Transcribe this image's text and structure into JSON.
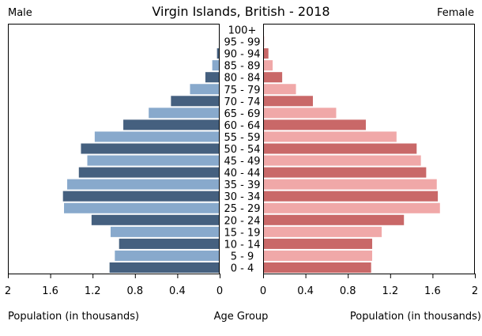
{
  "chart_data": {
    "type": "bar",
    "title": "Virgin Islands, British - 2018",
    "left_header": "Male",
    "right_header": "Female",
    "xlabel_left": "Population (in thousands)",
    "xlabel_center": "Age Group",
    "xlabel_right": "Population (in thousands)",
    "xlim": [
      0,
      2
    ],
    "x_ticks": [
      "2",
      "1.6",
      "1.2",
      "0.8",
      "0.4",
      "0"
    ],
    "x_ticks_right": [
      "0",
      "0.4",
      "0.8",
      "1.2",
      "1.6",
      "2"
    ],
    "categories": [
      "100+",
      "95 - 99",
      "90 - 94",
      "85 - 89",
      "80 - 84",
      "75 - 79",
      "70 - 74",
      "65 - 69",
      "60 - 64",
      "55 - 59",
      "50 - 54",
      "45 - 49",
      "40 - 44",
      "35 - 39",
      "30 - 34",
      "25 - 29",
      "20 - 24",
      "15 - 19",
      "10 - 14",
      "5 - 9",
      "0 - 4"
    ],
    "series": [
      {
        "name": "Male",
        "values": [
          0.0,
          0.005,
          0.025,
          0.07,
          0.135,
          0.28,
          0.46,
          0.67,
          0.91,
          1.18,
          1.31,
          1.25,
          1.33,
          1.44,
          1.48,
          1.47,
          1.21,
          1.03,
          0.95,
          0.99,
          1.04
        ]
      },
      {
        "name": "Female",
        "values": [
          0.0,
          0.01,
          0.05,
          0.09,
          0.18,
          0.31,
          0.47,
          0.69,
          0.97,
          1.26,
          1.45,
          1.49,
          1.54,
          1.64,
          1.65,
          1.67,
          1.33,
          1.12,
          1.03,
          1.03,
          1.02
        ]
      }
    ],
    "colors": {
      "male_dark": "#45607f",
      "male_light": "#88a9cc",
      "female_dark": "#c96868",
      "female_light": "#f0a8a8",
      "frame": "#000000"
    },
    "grid": false
  }
}
